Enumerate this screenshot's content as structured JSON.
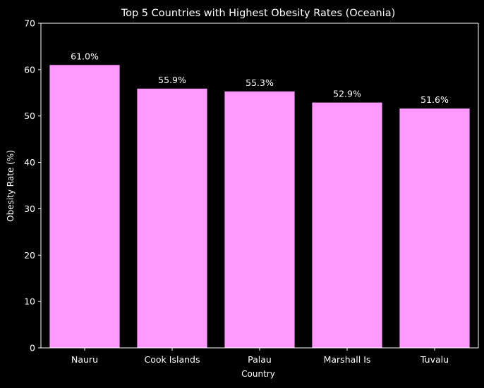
{
  "chart_data": {
    "type": "bar",
    "title": "Top 5 Countries with Highest Obesity Rates (Oceania)",
    "xlabel": "Country",
    "ylabel": "Obesity Rate (%)",
    "categories": [
      "Nauru",
      "Cook Islands",
      "Palau",
      "Marshall Is",
      "Tuvalu"
    ],
    "values": [
      61.0,
      55.9,
      55.3,
      52.9,
      51.6
    ],
    "value_labels": [
      "61.0%",
      "55.9%",
      "55.3%",
      "52.9%",
      "51.6%"
    ],
    "ylim": [
      0,
      70
    ],
    "yticks": [
      0,
      10,
      20,
      30,
      40,
      50,
      60,
      70
    ],
    "grid": false,
    "legend": "none",
    "bar_color": "#ff99ff",
    "background_color": "#000000",
    "text_color": "#ffffff"
  }
}
